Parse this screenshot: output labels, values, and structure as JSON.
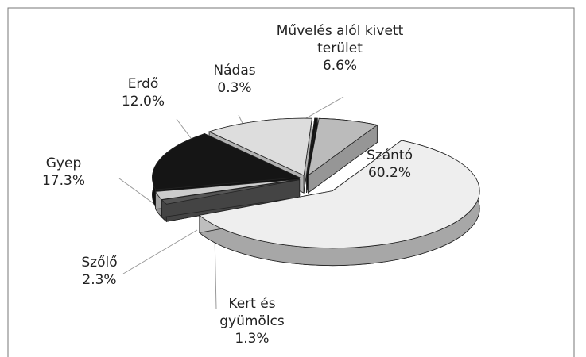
{
  "chart_data": {
    "type": "pie3d",
    "categories": [
      "Szántó",
      "Kert és gyümölcs",
      "Szőlő",
      "Gyep",
      "Erdő",
      "Nádas",
      "Művelés alól kivett terület"
    ],
    "values": [
      60.2,
      1.3,
      2.3,
      17.3,
      12.0,
      0.3,
      6.6
    ],
    "value_labels": [
      "60.2%",
      "1.3%",
      "2.3%",
      "17.3%",
      "12.0%",
      "0.3%",
      "6.6%"
    ],
    "colors": [
      "#eeeeee",
      "#555555",
      "#cccccc",
      "#151515",
      "#dddddd",
      "#111111",
      "#bbbbbb"
    ]
  }
}
